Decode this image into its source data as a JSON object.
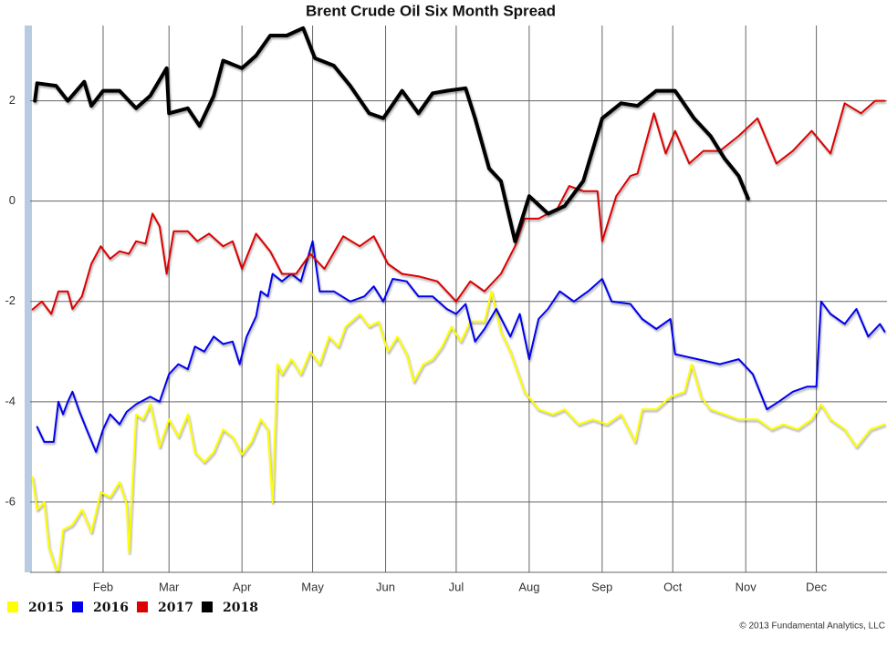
{
  "chart_data": {
    "type": "line",
    "title": "Brent Crude Oil Six Month Spread",
    "credit": "© 2013 Fundamental Analytics, LLC",
    "xlim": [
      0,
      364
    ],
    "ylim": [
      -7.4,
      3.5
    ],
    "xticks": [
      {
        "value": 31,
        "label": "Feb"
      },
      {
        "value": 59,
        "label": "Mar"
      },
      {
        "value": 90,
        "label": "Apr"
      },
      {
        "value": 120,
        "label": "May"
      },
      {
        "value": 151,
        "label": "Jun"
      },
      {
        "value": 181,
        "label": "Jul"
      },
      {
        "value": 212,
        "label": "Aug"
      },
      {
        "value": 243,
        "label": "Sep"
      },
      {
        "value": 273,
        "label": "Oct"
      },
      {
        "value": 304,
        "label": "Nov"
      },
      {
        "value": 334,
        "label": "Dec"
      }
    ],
    "yticks": [
      -6,
      -4,
      -2,
      0,
      2
    ],
    "grid": true,
    "legend": "bottom-left",
    "series": [
      {
        "name": "2015",
        "color": "#ffff00",
        "line_width": 2,
        "x": [
          1,
          3,
          6,
          8,
          11,
          12,
          14,
          18,
          22,
          26,
          30,
          34,
          38,
          41,
          42,
          45,
          48,
          51,
          55,
          59,
          63,
          67,
          70,
          74,
          78,
          82,
          86,
          90,
          94,
          98,
          101,
          103,
          105,
          107,
          111,
          115,
          119,
          123,
          127,
          131,
          134,
          140,
          144,
          148,
          152,
          156,
          160,
          163,
          167,
          171,
          175,
          179,
          183,
          187,
          193,
          196,
          200,
          204,
          210,
          216,
          222,
          227,
          233,
          239,
          245,
          251,
          257,
          260,
          266,
          272,
          278,
          281,
          285,
          289,
          295,
          301,
          309,
          315,
          320,
          326,
          332,
          336,
          340,
          346,
          351,
          357,
          363
        ],
        "values": [
          -5.5,
          -6.15,
          -6,
          -6.9,
          -7.35,
          -7.35,
          -6.55,
          -6.45,
          -6.15,
          -6.6,
          -5.8,
          -5.9,
          -5.6,
          -6.05,
          -7,
          -4.25,
          -4.35,
          -4.05,
          -4.9,
          -4.35,
          -4.7,
          -4.25,
          -5,
          -5.2,
          -5,
          -4.55,
          -4.7,
          -5.05,
          -4.8,
          -4.35,
          -4.55,
          -6,
          -3.25,
          -3.45,
          -3.15,
          -3.45,
          -3,
          -3.25,
          -2.7,
          -2.9,
          -2.5,
          -2.25,
          -2.5,
          -2.4,
          -3,
          -2.7,
          -3.05,
          -3.6,
          -3.25,
          -3.15,
          -2.9,
          -2.5,
          -2.8,
          -2.4,
          -2.4,
          -1.8,
          -2.6,
          -3,
          -3.8,
          -4.15,
          -4.25,
          -4.15,
          -4.45,
          -4.35,
          -4.45,
          -4.25,
          -4.8,
          -4.15,
          -4.15,
          -3.9,
          -3.8,
          -3.25,
          -3.9,
          -4.15,
          -4.25,
          -4.35,
          -4.35,
          -4.55,
          -4.45,
          -4.55,
          -4.35,
          -4.05,
          -4.35,
          -4.55,
          -4.9,
          -4.55,
          -4.45
        ]
      },
      {
        "name": "2016",
        "color": "#0000ee",
        "line_width": 2,
        "x": [
          3,
          6,
          10,
          12,
          14,
          16,
          18,
          21,
          24,
          28,
          31,
          34,
          38,
          41,
          45,
          51,
          55,
          59,
          63,
          67,
          70,
          74,
          78,
          82,
          86,
          89,
          92,
          96,
          98,
          101,
          103,
          107,
          111,
          115,
          120,
          123,
          129,
          136,
          142,
          146,
          150,
          154,
          160,
          165,
          171,
          177,
          181,
          185,
          189,
          193,
          198,
          204,
          208,
          212,
          216,
          220,
          225,
          231,
          237,
          243,
          247,
          255,
          260,
          266,
          272,
          274,
          293,
          301,
          307,
          313,
          318,
          324,
          330,
          334,
          336,
          340,
          346,
          351,
          356,
          361,
          363
        ],
        "values": [
          -4.5,
          -4.8,
          -4.8,
          -4,
          -4.25,
          -4,
          -3.8,
          -4.2,
          -4.55,
          -5,
          -4.55,
          -4.25,
          -4.45,
          -4.2,
          -4.05,
          -3.9,
          -4,
          -3.45,
          -3.25,
          -3.35,
          -2.9,
          -3,
          -2.7,
          -2.85,
          -2.8,
          -3.25,
          -2.7,
          -2.3,
          -1.8,
          -1.9,
          -1.45,
          -1.6,
          -1.45,
          -1.6,
          -0.8,
          -1.8,
          -1.8,
          -2,
          -1.9,
          -1.7,
          -2,
          -1.55,
          -1.6,
          -1.9,
          -1.9,
          -2.15,
          -2.25,
          -2.05,
          -2.8,
          -2.55,
          -2.15,
          -2.7,
          -2.25,
          -3.15,
          -2.35,
          -2.15,
          -1.8,
          -2,
          -1.8,
          -1.55,
          -2,
          -2.05,
          -2.35,
          -2.55,
          -2.35,
          -3.05,
          -3.25,
          -3.15,
          -3.45,
          -4.15,
          -4,
          -3.8,
          -3.7,
          -3.7,
          -2,
          -2.25,
          -2.45,
          -2.15,
          -2.7,
          -2.45,
          -2.6
        ]
      },
      {
        "name": "2017",
        "color": "#dd0000",
        "line_width": 2,
        "x": [
          1,
          5,
          9,
          12,
          16,
          18,
          22,
          26,
          30,
          34,
          38,
          42,
          45,
          49,
          52,
          55,
          58,
          61,
          67,
          71,
          76,
          82,
          86,
          90,
          96,
          102,
          107,
          113,
          119,
          125,
          133,
          140,
          146,
          152,
          158,
          165,
          173,
          181,
          187,
          193,
          200,
          206,
          210,
          216,
          224,
          229,
          235,
          241,
          243,
          249,
          255,
          258,
          265,
          270,
          274,
          280,
          286,
          293,
          301,
          309,
          317,
          324,
          332,
          340,
          346,
          353,
          359,
          363
        ],
        "values": [
          -2.16,
          -2,
          -2.25,
          -1.8,
          -1.8,
          -2.15,
          -1.9,
          -1.25,
          -0.9,
          -1.15,
          -1,
          -1.05,
          -0.8,
          -0.85,
          -0.25,
          -0.5,
          -1.45,
          -0.6,
          -0.6,
          -0.8,
          -0.65,
          -0.9,
          -0.8,
          -1.35,
          -0.65,
          -1,
          -1.45,
          -1.45,
          -1.05,
          -1.35,
          -0.7,
          -0.9,
          -0.7,
          -1.25,
          -1.45,
          -1.5,
          -1.6,
          -2,
          -1.6,
          -1.8,
          -1.45,
          -0.9,
          -0.35,
          -0.35,
          -0.15,
          0.3,
          0.2,
          0.2,
          -0.8,
          0.1,
          0.5,
          0.55,
          1.75,
          0.95,
          1.4,
          0.75,
          1,
          1,
          1.3,
          1.65,
          0.75,
          1,
          1.4,
          0.95,
          1.95,
          1.75,
          2,
          2
        ]
      },
      {
        "name": "2018",
        "color": "#000000",
        "line_width": 4,
        "x": [
          2,
          3,
          11,
          16,
          23,
          26,
          31,
          38,
          45,
          51,
          58,
          59,
          67,
          72,
          78,
          82,
          90,
          96,
          102,
          109,
          116,
          121,
          129,
          136,
          144,
          150,
          158,
          165,
          171,
          177,
          185,
          189,
          195,
          200,
          206,
          212,
          220,
          227,
          235,
          243,
          251,
          258,
          266,
          274,
          282,
          289,
          295,
          301,
          305
        ],
        "values": [
          2,
          2.35,
          2.3,
          2,
          2.38,
          1.9,
          2.2,
          2.2,
          1.85,
          2.1,
          2.65,
          1.75,
          1.85,
          1.5,
          2.1,
          2.8,
          2.65,
          2.9,
          3.3,
          3.3,
          3.45,
          2.85,
          2.7,
          2.3,
          1.75,
          1.65,
          2.2,
          1.75,
          2.15,
          2.2,
          2.25,
          1.65,
          0.65,
          0.4,
          -0.8,
          0.1,
          -0.25,
          -0.1,
          0.4,
          1.65,
          1.95,
          1.9,
          2.2,
          2.2,
          1.65,
          1.3,
          0.85,
          0.5,
          0.05
        ]
      }
    ]
  }
}
